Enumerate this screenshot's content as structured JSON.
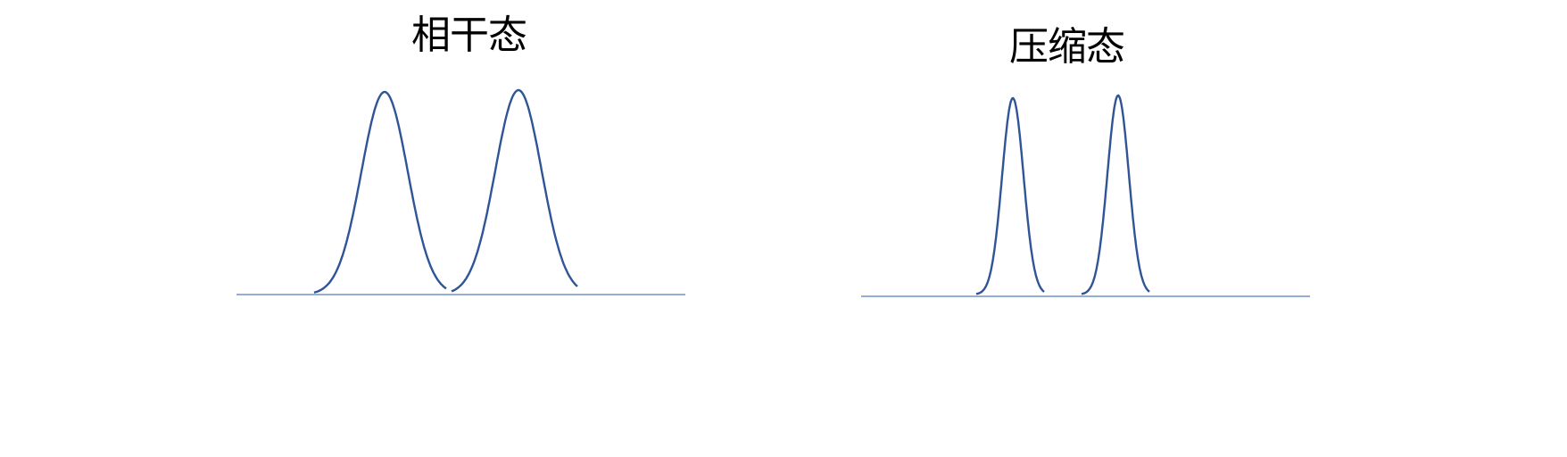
{
  "panels": [
    {
      "title": "相干态",
      "pulse_count": 2,
      "pulse_width": "broad"
    },
    {
      "title": "压缩态",
      "pulse_count": 2,
      "pulse_width": "narrow"
    }
  ],
  "colors": {
    "curve": "#2f5597",
    "baseline": "#6f93c9",
    "text": "#000000",
    "background": "#ffffff"
  }
}
